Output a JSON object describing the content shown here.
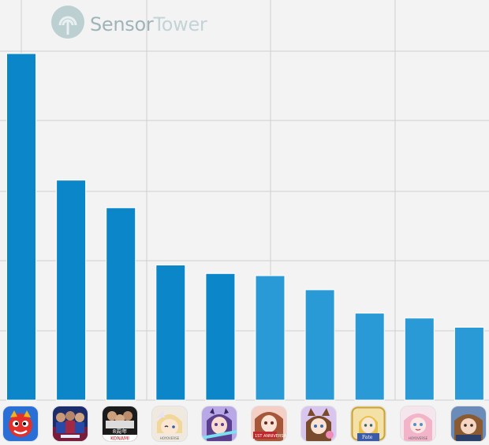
{
  "watermark": {
    "brand_part1": "Sensor",
    "brand_part2": "Tower"
  },
  "colors": {
    "bar_dark": "#0a86c9",
    "bar_light": "#2a9ad6",
    "grid": "#cfcfd1",
    "background": "#f3f3f4"
  },
  "chart_data": {
    "type": "bar",
    "title": "",
    "xlabel": "",
    "ylabel": "",
    "ylim": [
      0,
      5
    ],
    "grid": true,
    "legend": "none",
    "categories": [
      "Monster Strike",
      "eFootball",
      "Professional Baseball Spirits A",
      "Genshin Impact",
      "Uma Musume Pretty Derby",
      "Anniversary title",
      "Anime game",
      "Fate/Grand Order",
      "Honkai: Star Rail",
      "Granblue game"
    ],
    "values": [
      4.9,
      3.11,
      2.72,
      1.91,
      1.79,
      1.76,
      1.56,
      1.23,
      1.16,
      1.03
    ],
    "category_icons": [
      "monster-strike-icon",
      "efootball-icon",
      "pro-baseball-icon",
      "genshin-icon",
      "uma-musume-icon",
      "anniversary-icon",
      "anime-girl-icon",
      "fate-icon",
      "star-rail-icon",
      "granblue-icon"
    ],
    "icon_text": [
      "",
      "",
      "8周年 KONAMI",
      "HOYOVERSE",
      "",
      "1ST ANNIVERSARY",
      "",
      "Fate",
      "HOYOVERSE",
      ""
    ]
  }
}
